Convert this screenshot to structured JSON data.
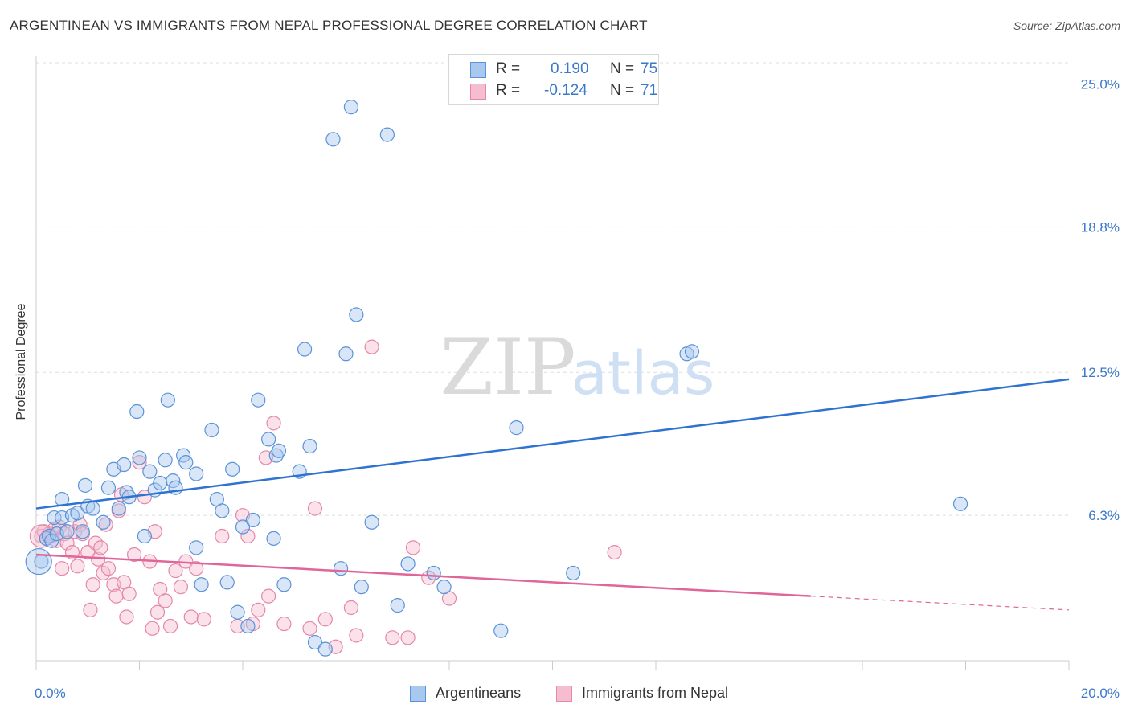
{
  "header": {
    "title": "ARGENTINEAN VS IMMIGRANTS FROM NEPAL PROFESSIONAL DEGREE CORRELATION CHART",
    "source": "Source: ZipAtlas.com"
  },
  "watermark": {
    "zip": "ZIP",
    "atlas": "atlas"
  },
  "legend": {
    "rows": [
      {
        "r_label": "R =",
        "r_value": "0.190",
        "n_label": "N =",
        "n_value": "75"
      },
      {
        "r_label": "R =",
        "r_value": "-0.124",
        "n_label": "N =",
        "n_value": "71"
      }
    ]
  },
  "colors": {
    "blue_fill": "#a9c8f0",
    "blue_stroke": "#5b93d6",
    "blue_line": "#2f73d0",
    "pink_fill": "#f6bdd0",
    "pink_stroke": "#e487a8",
    "pink_line": "#e0659a",
    "tick_text": "#3a78c9",
    "grid": "#dddddd"
  },
  "chart_data": {
    "type": "scatter",
    "title": "ARGENTINEAN VS IMMIGRANTS FROM NEPAL PROFESSIONAL DEGREE CORRELATION CHART",
    "ylabel": "Professional Degree",
    "xlim": [
      0,
      20
    ],
    "ylim": [
      0,
      26.2
    ],
    "x_tick_labels": [
      "0.0%",
      "20.0%"
    ],
    "y_ticks": [
      6.3,
      12.5,
      18.8,
      25.0
    ],
    "y_tick_labels": [
      "6.3%",
      "12.5%",
      "18.8%",
      "25.0%"
    ],
    "grid": "horizontal dashed",
    "legend_position": "top-center",
    "series": [
      {
        "name": "Argentineans",
        "R": 0.19,
        "N": 75,
        "trend": {
          "x": [
            0,
            20
          ],
          "y": [
            6.6,
            12.2
          ]
        },
        "points": [
          [
            0.1,
            4.3
          ],
          [
            0.2,
            5.3
          ],
          [
            0.25,
            5.4
          ],
          [
            0.3,
            5.2
          ],
          [
            0.35,
            6.2
          ],
          [
            0.4,
            5.5
          ],
          [
            0.5,
            6.2
          ],
          [
            0.5,
            7.0
          ],
          [
            0.6,
            5.6
          ],
          [
            0.7,
            6.3
          ],
          [
            0.8,
            6.4
          ],
          [
            0.9,
            5.6
          ],
          [
            0.95,
            7.6
          ],
          [
            1.0,
            6.7
          ],
          [
            1.1,
            6.6
          ],
          [
            1.3,
            6.0
          ],
          [
            1.4,
            7.5
          ],
          [
            1.5,
            8.3
          ],
          [
            1.6,
            6.6
          ],
          [
            1.7,
            8.5
          ],
          [
            1.75,
            7.3
          ],
          [
            1.8,
            7.1
          ],
          [
            1.95,
            10.8
          ],
          [
            2.0,
            8.8
          ],
          [
            2.1,
            5.4
          ],
          [
            2.2,
            8.2
          ],
          [
            2.3,
            7.4
          ],
          [
            2.4,
            7.7
          ],
          [
            2.5,
            8.7
          ],
          [
            2.55,
            11.3
          ],
          [
            2.65,
            7.8
          ],
          [
            2.7,
            7.5
          ],
          [
            2.85,
            8.9
          ],
          [
            2.9,
            8.6
          ],
          [
            3.1,
            8.1
          ],
          [
            3.1,
            4.9
          ],
          [
            3.2,
            3.3
          ],
          [
            3.4,
            10.0
          ],
          [
            3.5,
            7.0
          ],
          [
            3.6,
            6.5
          ],
          [
            3.7,
            3.4
          ],
          [
            3.8,
            8.3
          ],
          [
            3.9,
            2.1
          ],
          [
            4.0,
            5.8
          ],
          [
            4.1,
            1.5
          ],
          [
            4.2,
            6.1
          ],
          [
            4.3,
            11.3
          ],
          [
            4.5,
            9.6
          ],
          [
            4.6,
            5.3
          ],
          [
            4.65,
            8.9
          ],
          [
            4.7,
            9.1
          ],
          [
            4.8,
            3.3
          ],
          [
            5.1,
            8.2
          ],
          [
            5.2,
            13.5
          ],
          [
            5.3,
            9.3
          ],
          [
            5.4,
            0.8
          ],
          [
            5.6,
            0.5
          ],
          [
            5.75,
            22.6
          ],
          [
            5.9,
            4.0
          ],
          [
            6.0,
            13.3
          ],
          [
            6.1,
            24.0
          ],
          [
            6.2,
            15.0
          ],
          [
            6.3,
            3.2
          ],
          [
            6.5,
            6.0
          ],
          [
            6.8,
            22.8
          ],
          [
            7.0,
            2.4
          ],
          [
            7.2,
            4.2
          ],
          [
            7.7,
            3.8
          ],
          [
            7.9,
            3.2
          ],
          [
            9.0,
            1.3
          ],
          [
            9.3,
            10.1
          ],
          [
            10.4,
            3.8
          ],
          [
            12.6,
            13.3
          ],
          [
            12.7,
            13.4
          ],
          [
            17.9,
            6.8
          ]
        ]
      },
      {
        "name": "Immigrants from Nepal",
        "R": -0.124,
        "N": 71,
        "trend": {
          "x": [
            0,
            15.0
          ],
          "y": [
            4.6,
            2.8
          ],
          "dashed_to": {
            "x": 20,
            "y": 2.2
          }
        },
        "points": [
          [
            0.1,
            5.4
          ],
          [
            0.15,
            5.6
          ],
          [
            0.2,
            5.3
          ],
          [
            0.25,
            5.5
          ],
          [
            0.3,
            5.4
          ],
          [
            0.35,
            5.7
          ],
          [
            0.4,
            5.2
          ],
          [
            0.45,
            5.8
          ],
          [
            0.5,
            4.0
          ],
          [
            0.55,
            5.5
          ],
          [
            0.6,
            5.1
          ],
          [
            0.7,
            4.7
          ],
          [
            0.75,
            5.6
          ],
          [
            0.8,
            4.1
          ],
          [
            0.85,
            5.9
          ],
          [
            0.9,
            5.5
          ],
          [
            1.0,
            4.7
          ],
          [
            1.05,
            2.2
          ],
          [
            1.1,
            3.3
          ],
          [
            1.15,
            5.1
          ],
          [
            1.2,
            4.4
          ],
          [
            1.25,
            4.9
          ],
          [
            1.3,
            3.8
          ],
          [
            1.35,
            5.9
          ],
          [
            1.4,
            4.0
          ],
          [
            1.5,
            3.3
          ],
          [
            1.55,
            2.8
          ],
          [
            1.6,
            6.5
          ],
          [
            1.65,
            7.2
          ],
          [
            1.7,
            3.4
          ],
          [
            1.75,
            1.9
          ],
          [
            1.8,
            2.9
          ],
          [
            1.9,
            4.6
          ],
          [
            2.0,
            8.6
          ],
          [
            2.1,
            7.1
          ],
          [
            2.2,
            4.3
          ],
          [
            2.25,
            1.4
          ],
          [
            2.3,
            5.6
          ],
          [
            2.35,
            2.1
          ],
          [
            2.4,
            3.1
          ],
          [
            2.5,
            2.6
          ],
          [
            2.6,
            1.5
          ],
          [
            2.7,
            3.9
          ],
          [
            2.8,
            3.2
          ],
          [
            2.9,
            4.3
          ],
          [
            3.0,
            1.9
          ],
          [
            3.1,
            4.0
          ],
          [
            3.25,
            1.8
          ],
          [
            3.6,
            5.4
          ],
          [
            3.9,
            1.5
          ],
          [
            4.0,
            6.3
          ],
          [
            4.1,
            5.4
          ],
          [
            4.2,
            1.6
          ],
          [
            4.3,
            2.2
          ],
          [
            4.45,
            8.8
          ],
          [
            4.5,
            2.8
          ],
          [
            4.6,
            10.3
          ],
          [
            4.8,
            1.6
          ],
          [
            5.3,
            1.4
          ],
          [
            5.4,
            6.6
          ],
          [
            5.6,
            1.8
          ],
          [
            5.8,
            0.6
          ],
          [
            6.1,
            2.3
          ],
          [
            6.2,
            1.1
          ],
          [
            6.5,
            13.6
          ],
          [
            6.9,
            1.0
          ],
          [
            7.2,
            1.0
          ],
          [
            7.3,
            4.9
          ],
          [
            7.6,
            3.6
          ],
          [
            8.0,
            2.7
          ],
          [
            11.2,
            4.7
          ]
        ]
      }
    ]
  }
}
